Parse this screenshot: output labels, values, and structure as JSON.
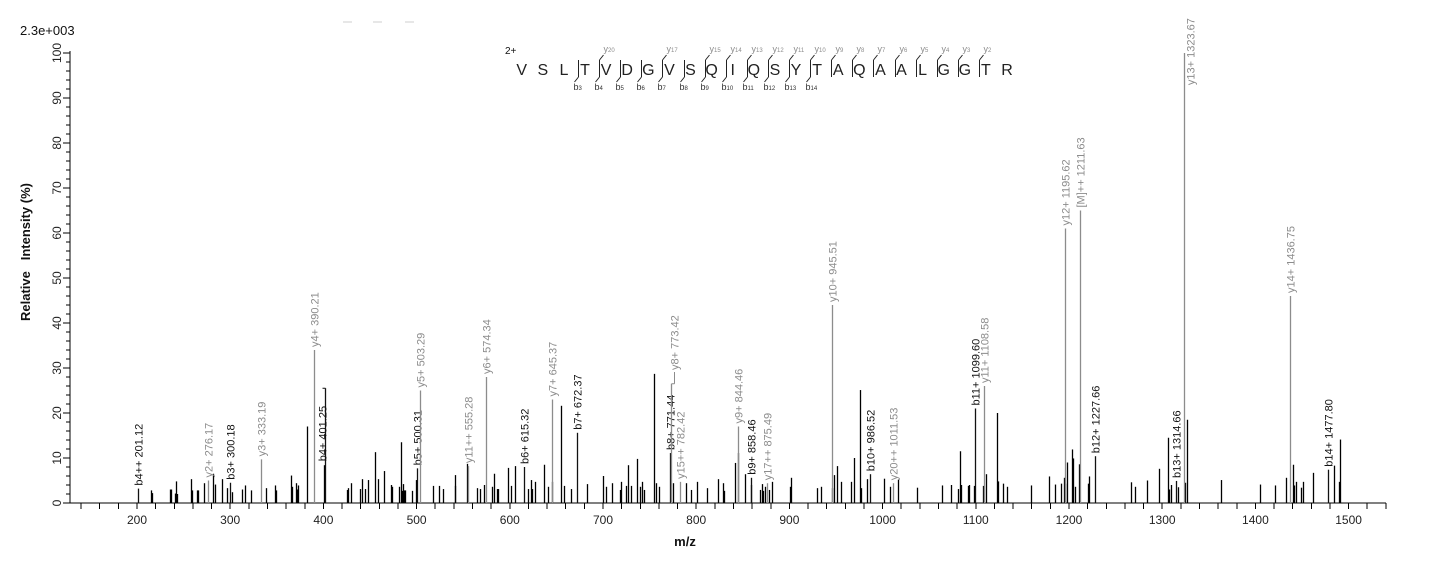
{
  "chart_data": {
    "type": "bar",
    "title": "",
    "intensity_scale": "2.3e+003",
    "xlabel": "m/z",
    "ylabel": "Relative   Intensity (%)",
    "xlim": [
      129.5,
      1540
    ],
    "ylim": [
      0,
      100
    ],
    "grid": false,
    "legend": null,
    "x_ticks_major": [
      200,
      300,
      400,
      500,
      600,
      700,
      800,
      900,
      1000,
      1100,
      1200,
      1300,
      1400,
      1500
    ],
    "x_tick_minor_step": 20,
    "y_ticks_major": [
      0,
      10,
      20,
      30,
      40,
      50,
      60,
      70,
      80,
      90,
      100
    ],
    "y_tick_minor_step": 2,
    "colors": {
      "y_ion": "#8c8c8c",
      "b_ion": "#111111",
      "precursor": "#8c8c8c",
      "peak": "#000000",
      "axis": "#000000"
    },
    "peptide": {
      "charge": "2+",
      "sequence": [
        "V",
        "S",
        "L",
        "T",
        "V",
        "D",
        "G",
        "V",
        "S",
        "Q",
        "I",
        "Q",
        "S",
        "Y",
        "T",
        "A",
        "Q",
        "A",
        "A",
        "L",
        "G",
        "G",
        "T",
        "R"
      ],
      "cleavages": [
        {
          "after": 3,
          "y": null,
          "b": 3
        },
        {
          "after": 4,
          "y": 20,
          "b": 4
        },
        {
          "after": 5,
          "y": null,
          "b": 5
        },
        {
          "after": 6,
          "y": null,
          "b": 6
        },
        {
          "after": 7,
          "y": 17,
          "b": 7
        },
        {
          "after": 8,
          "y": null,
          "b": 8
        },
        {
          "after": 9,
          "y": 15,
          "b": 9
        },
        {
          "after": 10,
          "y": 14,
          "b": 10
        },
        {
          "after": 11,
          "y": 13,
          "b": 11
        },
        {
          "after": 12,
          "y": 12,
          "b": 12
        },
        {
          "after": 13,
          "y": 11,
          "b": 13
        },
        {
          "after": 14,
          "y": 10,
          "b": 14
        },
        {
          "after": 15,
          "y": 9,
          "b": null
        },
        {
          "after": 16,
          "y": 8,
          "b": null
        },
        {
          "after": 17,
          "y": 7,
          "b": null
        },
        {
          "after": 18,
          "y": 6,
          "b": null
        },
        {
          "after": 19,
          "y": 5,
          "b": null
        },
        {
          "after": 20,
          "y": 4,
          "b": null
        },
        {
          "after": 21,
          "y": 3,
          "b": null
        },
        {
          "after": 22,
          "y": 2,
          "b": null
        }
      ]
    },
    "annotated_peaks": [
      {
        "label": "b4++ 201.12",
        "ion": "b",
        "mz": 201.12,
        "intensity": 3.2
      },
      {
        "label": "y2+ 276.17",
        "ion": "y",
        "mz": 276.17,
        "intensity": 5.0
      },
      {
        "label": "b3+ 300.18",
        "ion": "b",
        "mz": 300.18,
        "intensity": 4.5
      },
      {
        "label": "y3+ 333.19",
        "ion": "y",
        "mz": 333.19,
        "intensity": 9.7
      },
      {
        "label": "y4+ 390.21",
        "ion": "y",
        "mz": 390.21,
        "intensity": 34.0
      },
      {
        "label": "b4+ 401.25",
        "ion": "b",
        "mz": 401.25,
        "intensity": 25.5,
        "label_at": 8.6,
        "label_dx": -3
      },
      {
        "label": "b5+ 500.31",
        "ion": "b",
        "mz": 500.31,
        "intensity": 7.7
      },
      {
        "label": "y5+ 503.29",
        "ion": "y",
        "mz": 503.29,
        "intensity": 25.0
      },
      {
        "label": "y11++ 555.28",
        "ion": "y",
        "mz": 555.28,
        "intensity": 8.2
      },
      {
        "label": "y6+ 574.34",
        "ion": "y",
        "mz": 574.34,
        "intensity": 28.0
      },
      {
        "label": "b6+ 615.32",
        "ion": "b",
        "mz": 615.32,
        "intensity": 8.0
      },
      {
        "label": "y7+ 645.37",
        "ion": "y",
        "mz": 645.37,
        "intensity": 23.0
      },
      {
        "label": "b7+ 672.37",
        "ion": "b",
        "mz": 672.37,
        "intensity": 15.6
      },
      {
        "label": "b8+ 771.44",
        "ion": "b",
        "mz": 771.44,
        "intensity": 11.1
      },
      {
        "label": "y8+ 773.42",
        "ion": "y",
        "mz": 773.42,
        "intensity": 26.5,
        "label_at": 28.9,
        "label_dx": 3
      },
      {
        "label": "y15++ 782.42",
        "ion": "y",
        "mz": 782.42,
        "intensity": 4.7
      },
      {
        "label": "y9+ 844.46",
        "ion": "y",
        "mz": 844.46,
        "intensity": 17.0
      },
      {
        "label": "b9+ 858.46",
        "ion": "b",
        "mz": 858.46,
        "intensity": 5.6
      },
      {
        "label": "y17++ 875.49",
        "ion": "y",
        "mz": 875.49,
        "intensity": 4.4
      },
      {
        "label": "y10+ 945.51",
        "ion": "y",
        "mz": 945.51,
        "intensity": 44.0
      },
      {
        "label": "b10+ 986.52",
        "ion": "b",
        "mz": 986.52,
        "intensity": 6.4
      },
      {
        "label": "y20++ 1011.53",
        "ion": "y",
        "mz": 1011.53,
        "intensity": 4.4
      },
      {
        "label": "b11+ 1099.60",
        "ion": "b",
        "mz": 1099.6,
        "intensity": 21.0
      },
      {
        "label": "y11+ 1108.58",
        "ion": "y",
        "mz": 1108.58,
        "intensity": 26.0
      },
      {
        "label": "y12+ 1195.62",
        "ion": "y",
        "mz": 1195.62,
        "intensity": 61.0
      },
      {
        "label": "[M]++ 1211.63",
        "ion": "precursor",
        "mz": 1211.63,
        "intensity": 65.0
      },
      {
        "label": "b12+ 1227.66",
        "ion": "b",
        "mz": 1227.66,
        "intensity": 10.4
      },
      {
        "label": "b13+ 1314.66",
        "ion": "b",
        "mz": 1314.66,
        "intensity": 4.9
      },
      {
        "label": "y13+ 1323.67",
        "ion": "y",
        "mz": 1323.67,
        "intensity": 100.0,
        "label_at": 92.2,
        "label_dx": 6
      },
      {
        "label": "y14+ 1436.75",
        "ion": "y",
        "mz": 1436.75,
        "intensity": 46.0
      },
      {
        "label": "b14+ 1477.80",
        "ion": "b",
        "mz": 1477.8,
        "intensity": 7.4
      }
    ],
    "peaks": [
      [
        215.4,
        2.8
      ],
      [
        216.5,
        2.2
      ],
      [
        235.0,
        3.0
      ],
      [
        236.5,
        3.0
      ],
      [
        241.1,
        2.1
      ],
      [
        242.2,
        4.8
      ],
      [
        243.3,
        2.0
      ],
      [
        258.3,
        5.3
      ],
      [
        259.4,
        2.8
      ],
      [
        264.8,
        2.8
      ],
      [
        265.9,
        2.8
      ],
      [
        272.3,
        4.4
      ],
      [
        281.9,
        6.5
      ],
      [
        284.0,
        4.1
      ],
      [
        291.6,
        5.3
      ],
      [
        296.9,
        3.3
      ],
      [
        302.3,
        2.4
      ],
      [
        313.0,
        3.0
      ],
      [
        316.3,
        3.9
      ],
      [
        322.7,
        2.8
      ],
      [
        338.8,
        3.3
      ],
      [
        348.5,
        3.9
      ],
      [
        349.6,
        2.8
      ],
      [
        365.7,
        6.1
      ],
      [
        366.8,
        3.6
      ],
      [
        371.1,
        4.4
      ],
      [
        372.1,
        3.0
      ],
      [
        373.2,
        3.9
      ],
      [
        382.8,
        17.0
      ],
      [
        400.3,
        8.4
      ],
      [
        424.8,
        2.9
      ],
      [
        425.9,
        3.3
      ],
      [
        429.1,
        4.4
      ],
      [
        438.8,
        3.1
      ],
      [
        441.0,
        5.3
      ],
      [
        444.2,
        3.1
      ],
      [
        447.4,
        5.1
      ],
      [
        454.9,
        11.3
      ],
      [
        458.1,
        5.3
      ],
      [
        464.6,
        7.1
      ],
      [
        472.1,
        4.0
      ],
      [
        473.2,
        3.6
      ],
      [
        480.7,
        3.6
      ],
      [
        482.8,
        13.5
      ],
      [
        483.9,
        2.7
      ],
      [
        485.0,
        4.2
      ],
      [
        486.1,
        2.8
      ],
      [
        487.1,
        2.8
      ],
      [
        494.6,
        2.7
      ],
      [
        498.9,
        5.1
      ],
      [
        517.2,
        3.8
      ],
      [
        523.6,
        3.8
      ],
      [
        527.9,
        3.1
      ],
      [
        540.8,
        6.2
      ],
      [
        541.5,
        3.8
      ],
      [
        554.1,
        8.7
      ],
      [
        564.9,
        3.3
      ],
      [
        567.7,
        3.1
      ],
      [
        572.0,
        4.0
      ],
      [
        580.6,
        3.6
      ],
      [
        582.7,
        6.5
      ],
      [
        585.9,
        3.1
      ],
      [
        587.0,
        3.1
      ],
      [
        597.7,
        7.8
      ],
      [
        601.0,
        3.8
      ],
      [
        605.3,
        8.2
      ],
      [
        619.2,
        3.1
      ],
      [
        622.5,
        5.1
      ],
      [
        623.6,
        3.1
      ],
      [
        626.8,
        4.7
      ],
      [
        636.4,
        8.5
      ],
      [
        640.8,
        3.6
      ],
      [
        645.1,
        4.7
      ],
      [
        654.8,
        21.6
      ],
      [
        658.4,
        3.8
      ],
      [
        665.9,
        3.1
      ],
      [
        682.6,
        4.2
      ],
      [
        699.8,
        6.0
      ],
      [
        703.0,
        3.6
      ],
      [
        709.5,
        4.4
      ],
      [
        718.0,
        2.9
      ],
      [
        719.1,
        4.7
      ],
      [
        724.5,
        3.8
      ],
      [
        726.7,
        8.4
      ],
      [
        729.9,
        3.8
      ],
      [
        736.3,
        9.8
      ],
      [
        739.6,
        3.6
      ],
      [
        741.7,
        4.7
      ],
      [
        743.9,
        2.9
      ],
      [
        754.6,
        28.7
      ],
      [
        756.7,
        4.4
      ],
      [
        760.0,
        3.6
      ],
      [
        775.0,
        4.4
      ],
      [
        789.0,
        4.4
      ],
      [
        794.4,
        2.9
      ],
      [
        800.8,
        4.7
      ],
      [
        811.6,
        3.3
      ],
      [
        823.4,
        5.3
      ],
      [
        828.8,
        4.4
      ],
      [
        829.9,
        2.7
      ],
      [
        841.6,
        8.9
      ],
      [
        844.8,
        11.1
      ],
      [
        852.4,
        6.4
      ],
      [
        858.8,
        4.0
      ],
      [
        868.5,
        2.9
      ],
      [
        870.7,
        4.2
      ],
      [
        871.7,
        2.7
      ],
      [
        873.9,
        3.6
      ],
      [
        878.2,
        2.9
      ],
      [
        881.5,
        4.7
      ],
      [
        900.6,
        3.6
      ],
      [
        901.7,
        5.6
      ],
      [
        929.7,
        3.3
      ],
      [
        933.9,
        3.6
      ],
      [
        945.8,
        3.3
      ],
      [
        947.9,
        6.2
      ],
      [
        951.1,
        8.2
      ],
      [
        955.4,
        4.7
      ],
      [
        966.2,
        4.7
      ],
      [
        969.4,
        10.0
      ],
      [
        975.8,
        25.1
      ],
      [
        977.0,
        3.3
      ],
      [
        983.4,
        5.3
      ],
      [
        1001.6,
        5.4
      ],
      [
        1008.1,
        3.6
      ],
      [
        1016.7,
        5.2
      ],
      [
        1037.1,
        3.4
      ],
      [
        1063.6,
        3.9
      ],
      [
        1073.6,
        4.0
      ],
      [
        1081.1,
        3.1
      ],
      [
        1083.3,
        11.5
      ],
      [
        1084.4,
        4.0
      ],
      [
        1091.9,
        3.8
      ],
      [
        1093.0,
        4.0
      ],
      [
        1098.3,
        3.8
      ],
      [
        1108.0,
        3.8
      ],
      [
        1111.4,
        6.4
      ],
      [
        1123.0,
        20.0
      ],
      [
        1124.1,
        4.8
      ],
      [
        1129.4,
        4.3
      ],
      [
        1133.7,
        3.6
      ],
      [
        1159.5,
        3.9
      ],
      [
        1178.8,
        5.9
      ],
      [
        1185.3,
        4.1
      ],
      [
        1191.7,
        4.3
      ],
      [
        1194.9,
        5.6
      ],
      [
        1196.0,
        4.3
      ],
      [
        1198.2,
        9.0
      ],
      [
        1203.5,
        11.9
      ],
      [
        1204.6,
        9.9
      ],
      [
        1206.8,
        3.6
      ],
      [
        1211.1,
        8.6
      ],
      [
        1220.7,
        4.3
      ],
      [
        1221.8,
        5.9
      ],
      [
        1267.0,
        4.6
      ],
      [
        1271.3,
        3.6
      ],
      [
        1284.0,
        5.0
      ],
      [
        1296.9,
        7.6
      ],
      [
        1306.6,
        14.5
      ],
      [
        1307.6,
        3.0
      ],
      [
        1309.8,
        4.0
      ],
      [
        1317.3,
        3.5
      ],
      [
        1324.6,
        4.5
      ],
      [
        1326.8,
        18.5
      ],
      [
        1363.0,
        5.1
      ],
      [
        1404.9,
        4.1
      ],
      [
        1421.0,
        3.9
      ],
      [
        1432.4,
        5.6
      ],
      [
        1440.0,
        8.5
      ],
      [
        1441.0,
        3.9
      ],
      [
        1443.2,
        4.7
      ],
      [
        1448.6,
        3.4
      ],
      [
        1450.7,
        4.7
      ],
      [
        1461.5,
        6.7
      ],
      [
        1484.0,
        8.3
      ],
      [
        1489.4,
        4.7
      ],
      [
        1490.5,
        14.1
      ]
    ]
  }
}
